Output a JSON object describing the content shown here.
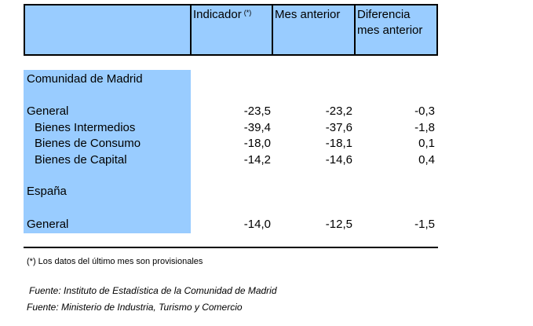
{
  "header": {
    "indicador": "Indicador",
    "indicador_mark": "(*)",
    "mes_anterior": "Mes anterior",
    "diferencia_line1": "Diferencia",
    "diferencia_line2": "mes anterior"
  },
  "sections": {
    "madrid": "Comunidad de Madrid",
    "espana": "España"
  },
  "rows": [
    {
      "label": "General",
      "indicador": "-23,5",
      "mes_anterior": "-23,2",
      "diferencia": "-0,3"
    },
    {
      "label": "Bienes Intermedios",
      "indicador": "-39,4",
      "mes_anterior": "-37,6",
      "diferencia": "-1,8"
    },
    {
      "label": "Bienes de Consumo",
      "indicador": "-18,0",
      "mes_anterior": "-18,1",
      "diferencia": "0,1"
    },
    {
      "label": "Bienes de Capital",
      "indicador": "-14,2",
      "mes_anterior": "-14,6",
      "diferencia": "0,4"
    },
    {
      "label": "General",
      "indicador": "-14,0",
      "mes_anterior": "-12,5",
      "diferencia": "-1,5"
    }
  ],
  "footnote": "(*) Los datos del último mes son provisionales",
  "sources": [
    "Fuente: Instituto de Estadística de la Comunidad de Madrid",
    "Fuente: Ministerio de Industria, Turismo y Comercio"
  ],
  "colors": {
    "band": "#99ccff",
    "rule": "#000000"
  }
}
